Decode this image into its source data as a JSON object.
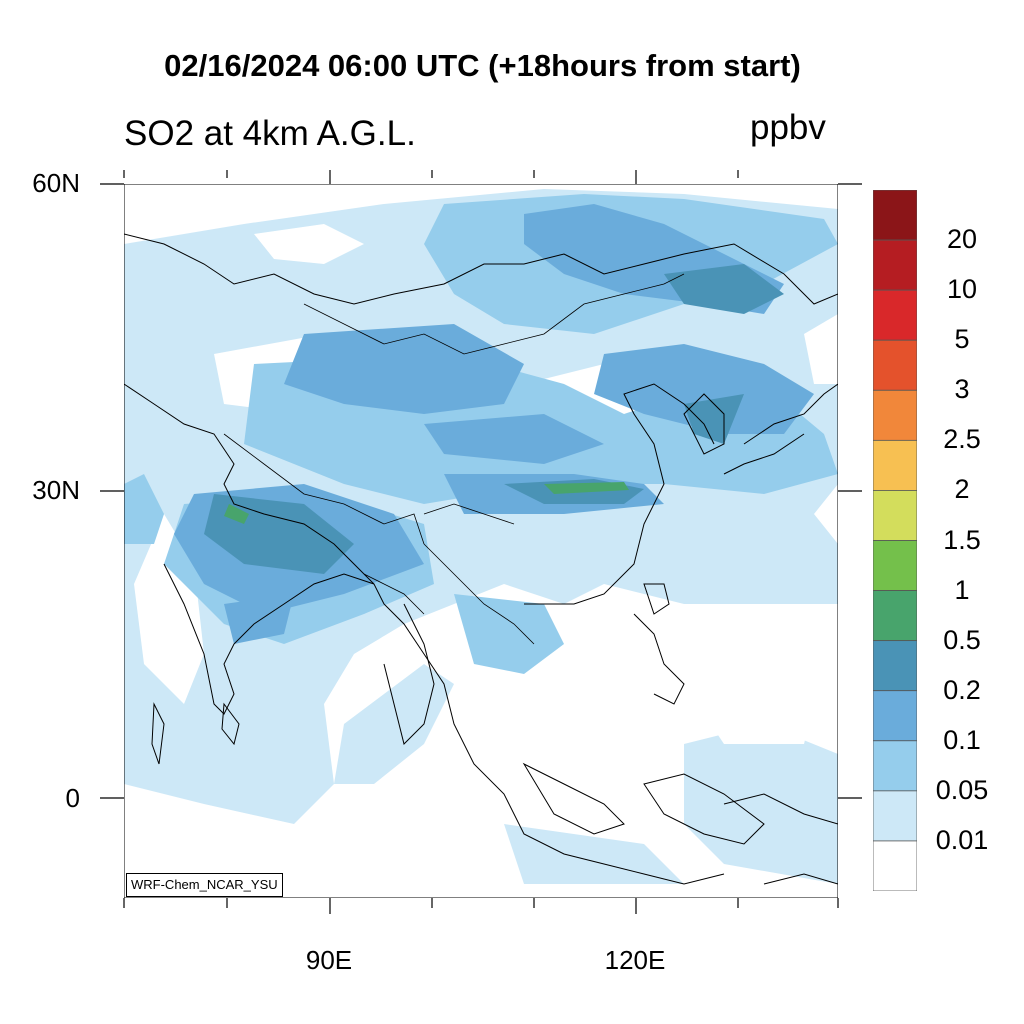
{
  "title": "02/16/2024 06:00 UTC (+18hours from start)",
  "subtitle": "SO2 at 4km A.G.L.",
  "units": "ppbv",
  "credit": "WRF-Chem_NCAR_YSU",
  "lat_labels": [
    "60N",
    "30N",
    "0"
  ],
  "lon_labels": [
    "90E",
    "120E"
  ],
  "colorbar": {
    "levels": [
      "20",
      "10",
      "5",
      "3",
      "2.5",
      "2",
      "1.5",
      "1",
      "0.5",
      "0.2",
      "0.1",
      "0.05",
      "0.01"
    ],
    "colors": [
      "#8b1518",
      "#b51d22",
      "#d9282a",
      "#e4522c",
      "#f1873a",
      "#f7c052",
      "#d3dd5c",
      "#74c04b",
      "#48a46c",
      "#4a93b6",
      "#6aacdb",
      "#95cdec",
      "#cde8f7",
      "#ffffff"
    ]
  },
  "map": {
    "domain": "Asia (lon ~70E-140E, lat ~-10 to 60N)",
    "ocean_color": "#ffffff",
    "coastline_color": "#000000"
  }
}
